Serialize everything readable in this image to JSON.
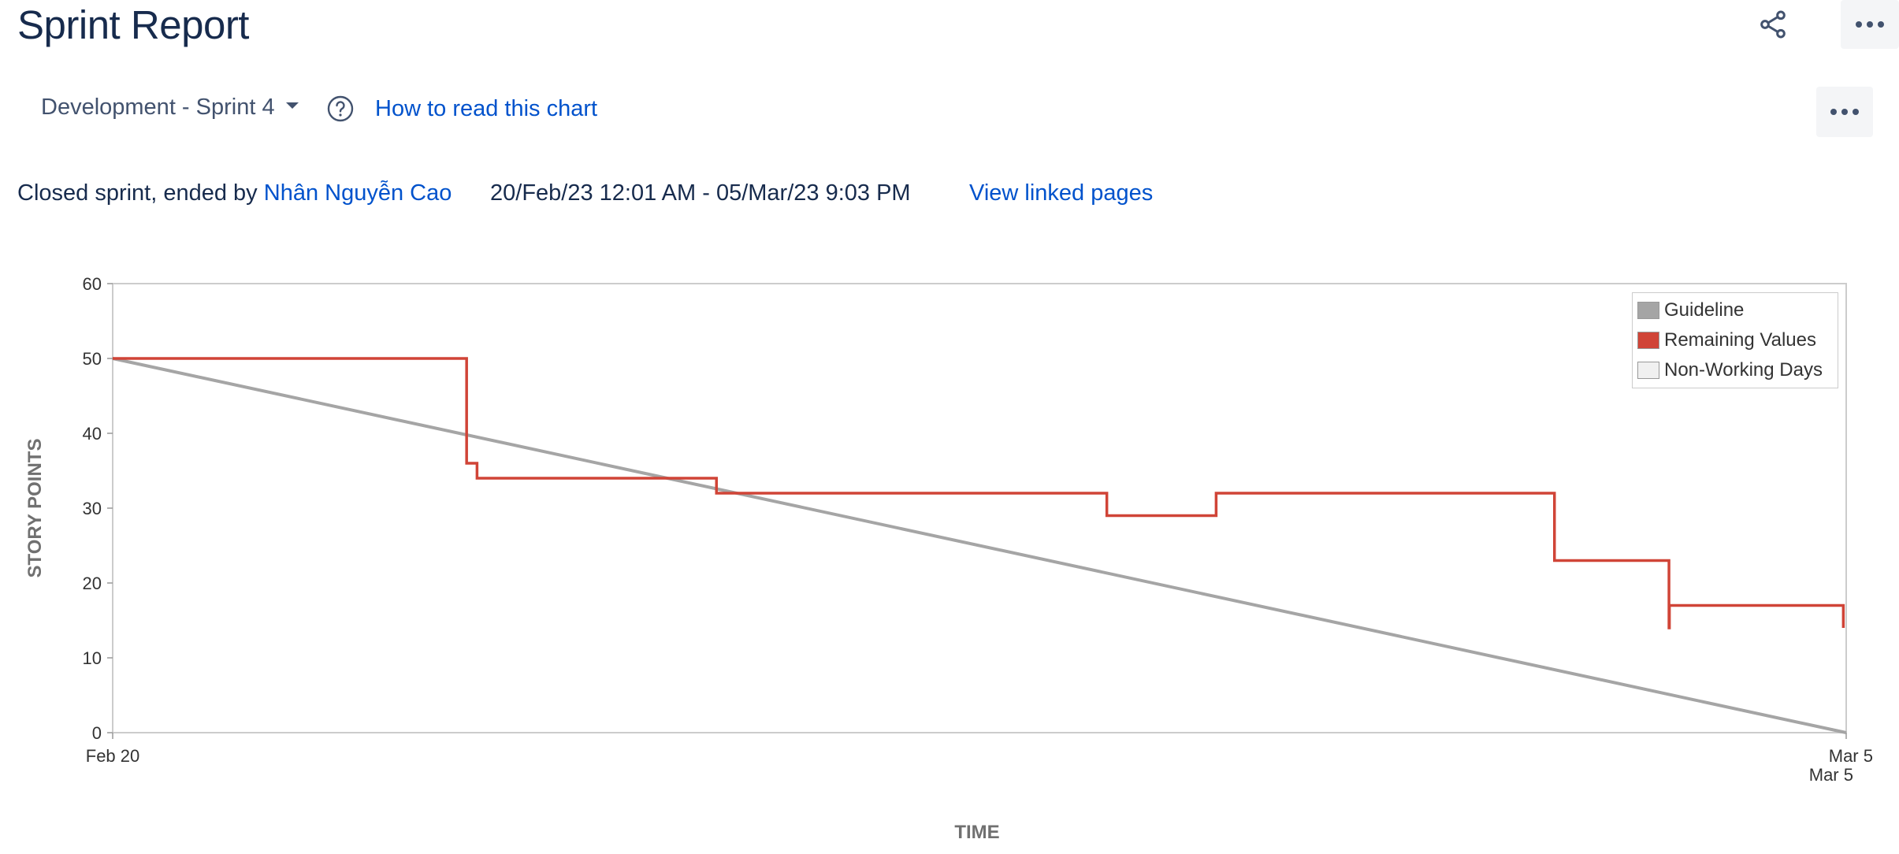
{
  "header": {
    "title": "Sprint Report"
  },
  "toolbar": {
    "sprint_selected": "Development - Sprint 4",
    "how_to_read_label": "How to read this chart"
  },
  "sprint_info": {
    "status_prefix": "Closed sprint, ended by ",
    "ended_by": "Nhân Nguyễn Cao",
    "date_range": "20/Feb/23 12:01 AM - 05/Mar/23 9:03 PM",
    "linked_pages_label": "View linked pages"
  },
  "icons": {
    "share": "share-icon",
    "more": "more-icon",
    "help": "help-icon"
  },
  "colors": {
    "guideline": "#A5A5A5",
    "remaining": "#D04437",
    "non_working": "#F0F0F0",
    "link": "#0052CC",
    "title": "#172B4D"
  },
  "chart_data": {
    "type": "line",
    "xlabel": "TIME",
    "ylabel": "STORY POINTS",
    "ylim": [
      0,
      60
    ],
    "y_ticks": [
      0,
      10,
      20,
      30,
      40,
      50,
      60
    ],
    "x_range": [
      "2023-02-20T00:00",
      "2023-03-05T21:03"
    ],
    "x_tick_labels": [
      {
        "x": "2023-02-20T00:00",
        "label": "Feb 20"
      },
      {
        "x": "2023-03-05T21:03",
        "label": "Mar 5"
      }
    ],
    "x_secondary_label": "Mar 5",
    "grid": false,
    "legend_position": "top-right",
    "legend": [
      "Guideline",
      "Remaining Values",
      "Non-Working Days"
    ],
    "series": [
      {
        "name": "Guideline",
        "color": "#A5A5A5",
        "points": [
          {
            "x": "2023-02-20T00:00",
            "y": 50
          },
          {
            "x": "2023-03-05T21:03",
            "y": 0
          }
        ]
      },
      {
        "name": "Remaining Values",
        "color": "#D04437",
        "step": true,
        "points": [
          {
            "x": "2023-02-20T00:00",
            "y": 50
          },
          {
            "x": "2023-02-22T20:00",
            "y": 36
          },
          {
            "x": "2023-02-22T22:00",
            "y": 34
          },
          {
            "x": "2023-02-24T20:00",
            "y": 32
          },
          {
            "x": "2023-02-27T23:00",
            "y": 29
          },
          {
            "x": "2023-02-28T20:00",
            "y": 32
          },
          {
            "x": "2023-03-03T13:00",
            "y": 23
          },
          {
            "x": "2023-03-04T11:00",
            "y": 14
          },
          {
            "x": "2023-03-04T11:05",
            "y": 17
          },
          {
            "x": "2023-03-05T20:30",
            "y": 14
          }
        ]
      }
    ]
  }
}
